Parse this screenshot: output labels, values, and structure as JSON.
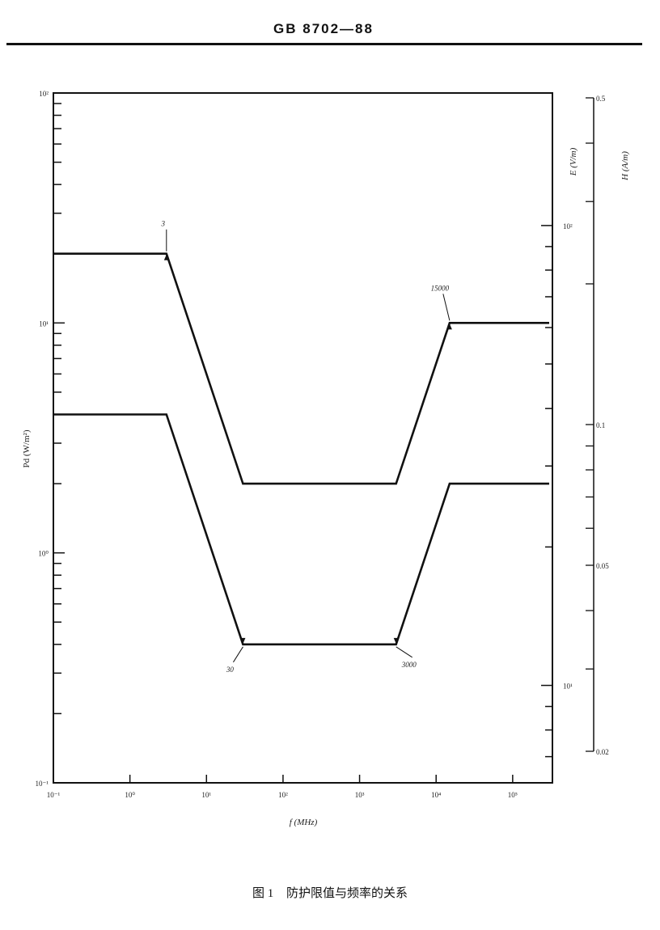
{
  "header": {
    "title": "GB 8702—88"
  },
  "caption": {
    "figure_no": "图 1",
    "text": "防护限值与频率的关系"
  },
  "chart_data": {
    "type": "line",
    "title": "",
    "xlabel": "f (MHz)",
    "ylabel": "Pd (W/m²)",
    "x_scale": "log",
    "y_scale": "log",
    "xlim": [
      0.1,
      300000
    ],
    "ylim": [
      0.1,
      100
    ],
    "grid": false,
    "x_ticks": [
      {
        "value": 0.1,
        "label": "10⁻¹"
      },
      {
        "value": 1,
        "label": "10⁰"
      },
      {
        "value": 10,
        "label": "10¹"
      },
      {
        "value": 100,
        "label": "10²"
      },
      {
        "value": 1000,
        "label": "10³"
      },
      {
        "value": 10000,
        "label": "10⁴"
      },
      {
        "value": 100000,
        "label": "10⁵"
      }
    ],
    "y_ticks": [
      {
        "value": 100,
        "label": "10²"
      },
      {
        "value": 10,
        "label": "10¹"
      },
      {
        "value": 1,
        "label": "10⁰"
      },
      {
        "value": 0.1,
        "label": "10⁻¹"
      }
    ],
    "right_axis_E": {
      "label": "E (V/m)",
      "scale": "log",
      "ticks": [
        {
          "value": 100,
          "label": "10²"
        },
        {
          "value": 10,
          "label": "10¹"
        }
      ]
    },
    "right_axis_H": {
      "label": "H (A/m)",
      "scale": "log",
      "range": [
        0.02,
        0.5
      ],
      "ticks": [
        {
          "value": 0.5,
          "label": "0.5"
        },
        {
          "value": 0.1,
          "label": "0.1"
        },
        {
          "value": 0.05,
          "label": "0.05"
        },
        {
          "value": 0.02,
          "label": "0.02"
        }
      ]
    },
    "series": [
      {
        "x": [
          0.1,
          3,
          30,
          3000,
          15000,
          300000
        ],
        "y": [
          20,
          20,
          2,
          2,
          10,
          10
        ]
      },
      {
        "x": [
          0.1,
          3,
          30,
          3000,
          15000,
          300000
        ],
        "y": [
          4,
          4,
          0.4,
          0.4,
          2,
          2
        ]
      }
    ],
    "annotations": [
      {
        "text": "3",
        "x": 3,
        "y": 20
      },
      {
        "text": "15000",
        "x": 15000,
        "y": 10
      },
      {
        "text": "30",
        "x": 30,
        "y": 0.4
      },
      {
        "text": "3000",
        "x": 3000,
        "y": 0.4
      }
    ],
    "line_color": "#111111"
  }
}
